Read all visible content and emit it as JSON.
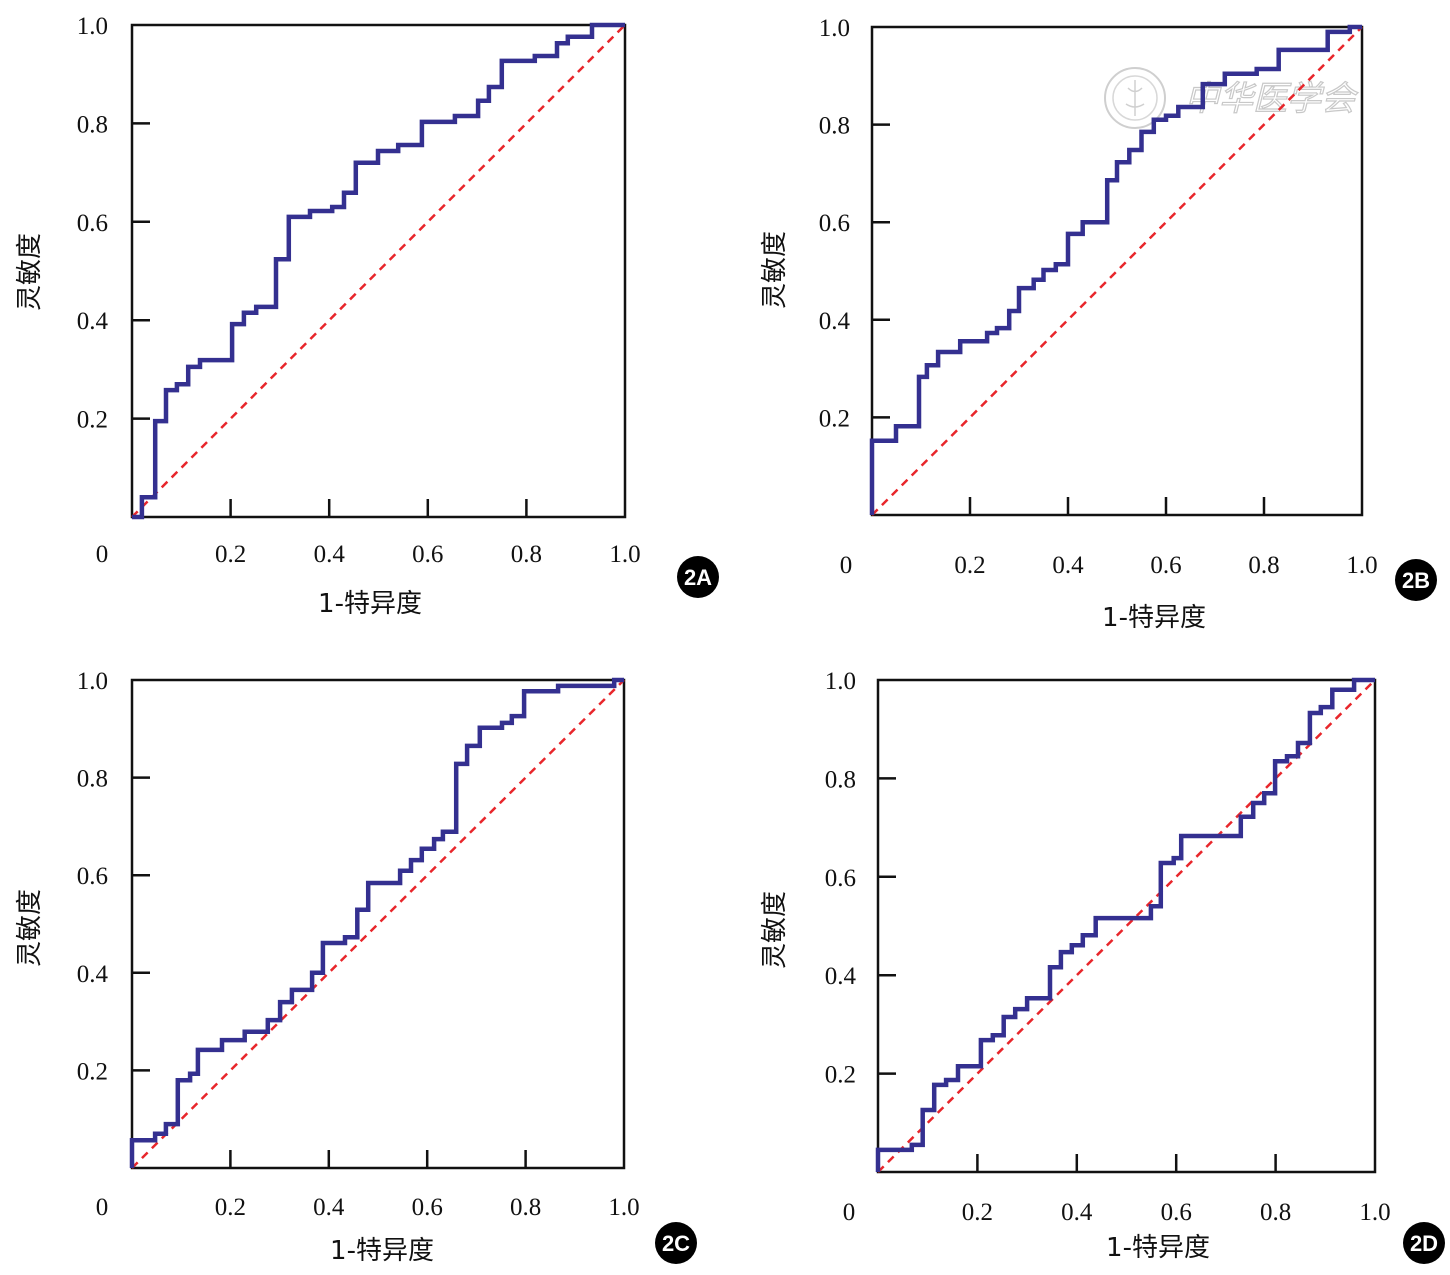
{
  "watermark": {
    "text": "中华医学会"
  },
  "colors": {
    "roc": "#343090",
    "reference": "#e8262b",
    "axis": "#111111",
    "badge": "#000000"
  },
  "chart_data": [
    {
      "type": "line",
      "panel": "2A",
      "xlabel": "1-特异度",
      "ylabel": "灵敏度",
      "xlim": [
        0,
        1
      ],
      "ylim": [
        0,
        1
      ],
      "origin_label": "0",
      "xticks": [
        "0.2",
        "0.4",
        "0.6",
        "0.8",
        "1.0"
      ],
      "yticks": [
        "0.2",
        "0.4",
        "0.6",
        "0.8",
        "1.0"
      ],
      "grid": false,
      "series": [
        {
          "name": "ROC",
          "style": "step",
          "x": [
            0,
            0.02,
            0.02,
            0.047,
            0.047,
            0.069,
            0.069,
            0.091,
            0.091,
            0.114,
            0.114,
            0.138,
            0.138,
            0.203,
            0.203,
            0.227,
            0.227,
            0.252,
            0.252,
            0.292,
            0.292,
            0.318,
            0.318,
            0.361,
            0.361,
            0.406,
            0.406,
            0.43,
            0.43,
            0.454,
            0.454,
            0.499,
            0.499,
            0.54,
            0.54,
            0.588,
            0.588,
            0.655,
            0.655,
            0.702,
            0.702,
            0.724,
            0.724,
            0.75,
            0.75,
            0.817,
            0.817,
            0.862,
            0.862,
            0.884,
            0.884,
            0.933,
            0.933,
            1
          ],
          "y": [
            0,
            0,
            0.04,
            0.04,
            0.195,
            0.195,
            0.258,
            0.258,
            0.27,
            0.27,
            0.305,
            0.305,
            0.319,
            0.319,
            0.392,
            0.392,
            0.415,
            0.415,
            0.427,
            0.427,
            0.524,
            0.524,
            0.61,
            0.61,
            0.622,
            0.622,
            0.63,
            0.63,
            0.659,
            0.659,
            0.72,
            0.72,
            0.744,
            0.744,
            0.756,
            0.756,
            0.803,
            0.803,
            0.815,
            0.815,
            0.846,
            0.846,
            0.874,
            0.874,
            0.927,
            0.927,
            0.937,
            0.937,
            0.963,
            0.963,
            0.976,
            0.976,
            1,
            1
          ]
        },
        {
          "name": "Reference",
          "style": "dashed",
          "x": [
            0,
            1
          ],
          "y": [
            0,
            1
          ]
        }
      ]
    },
    {
      "type": "line",
      "panel": "2B",
      "xlabel": "1-特异度",
      "ylabel": "灵敏度",
      "xlim": [
        0,
        1
      ],
      "ylim": [
        0,
        1
      ],
      "origin_label": "0",
      "xticks": [
        "0.2",
        "0.4",
        "0.6",
        "0.8",
        "1.0"
      ],
      "yticks": [
        "0.2",
        "0.4",
        "0.6",
        "0.8",
        "1.0"
      ],
      "grid": false,
      "series": [
        {
          "name": "ROC",
          "style": "step",
          "x": [
            0,
            0,
            0.049,
            0.049,
            0.096,
            0.096,
            0.112,
            0.112,
            0.135,
            0.135,
            0.18,
            0.18,
            0.235,
            0.235,
            0.255,
            0.255,
            0.28,
            0.28,
            0.3,
            0.3,
            0.33,
            0.33,
            0.35,
            0.35,
            0.375,
            0.375,
            0.4,
            0.4,
            0.43,
            0.43,
            0.48,
            0.48,
            0.5,
            0.5,
            0.525,
            0.525,
            0.55,
            0.55,
            0.575,
            0.575,
            0.6,
            0.6,
            0.625,
            0.625,
            0.675,
            0.675,
            0.72,
            0.72,
            0.785,
            0.785,
            0.83,
            0.83,
            0.93,
            0.93,
            0.975,
            0.975,
            1
          ],
          "y": [
            0,
            0.152,
            0.152,
            0.182,
            0.182,
            0.283,
            0.283,
            0.307,
            0.307,
            0.334,
            0.334,
            0.356,
            0.356,
            0.373,
            0.373,
            0.383,
            0.383,
            0.418,
            0.418,
            0.465,
            0.465,
            0.482,
            0.482,
            0.502,
            0.502,
            0.514,
            0.514,
            0.576,
            0.576,
            0.6,
            0.6,
            0.686,
            0.686,
            0.723,
            0.723,
            0.748,
            0.748,
            0.785,
            0.785,
            0.81,
            0.81,
            0.818,
            0.818,
            0.836,
            0.836,
            0.883,
            0.883,
            0.904,
            0.904,
            0.914,
            0.914,
            0.953,
            0.953,
            0.99,
            0.99,
            1,
            1
          ]
        },
        {
          "name": "Reference",
          "style": "dashed",
          "x": [
            0,
            1
          ],
          "y": [
            0,
            1
          ]
        }
      ]
    },
    {
      "type": "line",
      "panel": "2C",
      "xlabel": "1-特异度",
      "ylabel": "灵敏度",
      "xlim": [
        0,
        1
      ],
      "ylim": [
        0,
        1
      ],
      "origin_label": "0",
      "xticks": [
        "0.2",
        "0.4",
        "0.6",
        "0.8",
        "1.0"
      ],
      "yticks": [
        "0.2",
        "0.4",
        "0.6",
        "0.8",
        "1.0"
      ],
      "grid": false,
      "series": [
        {
          "name": "ROC",
          "style": "step",
          "x": [
            0,
            0,
            0.047,
            0.047,
            0.069,
            0.069,
            0.093,
            0.093,
            0.118,
            0.118,
            0.134,
            0.134,
            0.183,
            0.183,
            0.229,
            0.229,
            0.276,
            0.276,
            0.301,
            0.301,
            0.325,
            0.325,
            0.366,
            0.366,
            0.388,
            0.388,
            0.433,
            0.433,
            0.458,
            0.458,
            0.48,
            0.48,
            0.545,
            0.545,
            0.567,
            0.567,
            0.589,
            0.589,
            0.614,
            0.614,
            0.632,
            0.632,
            0.659,
            0.659,
            0.681,
            0.681,
            0.707,
            0.707,
            0.752,
            0.752,
            0.772,
            0.772,
            0.797,
            0.797,
            0.866,
            0.866,
            0.98,
            0.98,
            1
          ],
          "y": [
            0,
            0.057,
            0.057,
            0.07,
            0.07,
            0.09,
            0.09,
            0.18,
            0.18,
            0.193,
            0.193,
            0.242,
            0.242,
            0.262,
            0.262,
            0.279,
            0.279,
            0.303,
            0.303,
            0.34,
            0.34,
            0.365,
            0.365,
            0.4,
            0.4,
            0.461,
            0.461,
            0.473,
            0.473,
            0.529,
            0.529,
            0.584,
            0.584,
            0.609,
            0.609,
            0.631,
            0.631,
            0.654,
            0.654,
            0.674,
            0.674,
            0.689,
            0.689,
            0.828,
            0.828,
            0.865,
            0.865,
            0.902,
            0.902,
            0.912,
            0.912,
            0.926,
            0.926,
            0.977,
            0.977,
            0.988,
            0.988,
            1,
            1
          ]
        },
        {
          "name": "Reference",
          "style": "dashed",
          "x": [
            0,
            1
          ],
          "y": [
            0,
            1
          ]
        }
      ]
    },
    {
      "type": "line",
      "panel": "2D",
      "xlabel": "1-特异度",
      "ylabel": "灵敏度",
      "xlim": [
        0,
        1
      ],
      "ylim": [
        0,
        1
      ],
      "origin_label": "0",
      "xticks": [
        "0.2",
        "0.4",
        "0.6",
        "0.8",
        "1.0"
      ],
      "yticks": [
        "0.2",
        "0.4",
        "0.6",
        "0.8",
        "1.0"
      ],
      "grid": false,
      "series": [
        {
          "name": "ROC",
          "style": "step",
          "x": [
            0,
            0,
            0.068,
            0.068,
            0.09,
            0.09,
            0.113,
            0.113,
            0.137,
            0.137,
            0.161,
            0.161,
            0.207,
            0.207,
            0.231,
            0.231,
            0.253,
            0.253,
            0.276,
            0.276,
            0.3,
            0.3,
            0.346,
            0.346,
            0.368,
            0.368,
            0.39,
            0.39,
            0.412,
            0.412,
            0.438,
            0.438,
            0.549,
            0.549,
            0.569,
            0.569,
            0.595,
            0.595,
            0.61,
            0.61,
            0.73,
            0.73,
            0.755,
            0.755,
            0.777,
            0.777,
            0.799,
            0.799,
            0.823,
            0.823,
            0.845,
            0.845,
            0.869,
            0.869,
            0.891,
            0.891,
            0.914,
            0.914,
            0.958,
            0.958,
            1
          ],
          "y": [
            0,
            0.045,
            0.045,
            0.055,
            0.055,
            0.126,
            0.126,
            0.177,
            0.177,
            0.187,
            0.187,
            0.215,
            0.215,
            0.268,
            0.268,
            0.278,
            0.278,
            0.315,
            0.315,
            0.331,
            0.331,
            0.353,
            0.353,
            0.416,
            0.416,
            0.447,
            0.447,
            0.461,
            0.461,
            0.481,
            0.481,
            0.516,
            0.516,
            0.54,
            0.54,
            0.628,
            0.628,
            0.638,
            0.638,
            0.683,
            0.683,
            0.722,
            0.722,
            0.75,
            0.75,
            0.77,
            0.77,
            0.835,
            0.835,
            0.845,
            0.845,
            0.872,
            0.872,
            0.933,
            0.933,
            0.945,
            0.945,
            0.98,
            0.98,
            1,
            1
          ]
        },
        {
          "name": "Reference",
          "style": "dashed",
          "x": [
            0,
            1
          ],
          "y": [
            0,
            1
          ]
        }
      ]
    }
  ]
}
